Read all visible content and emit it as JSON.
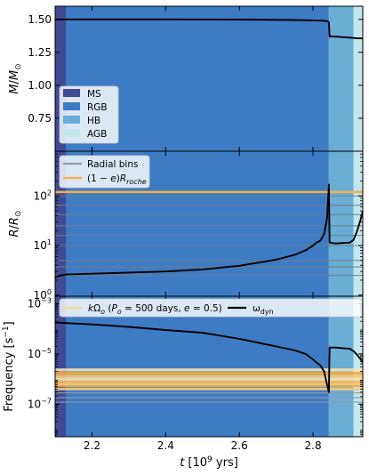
{
  "chart_data": [
    {
      "type": "area",
      "panel": "mass",
      "ylabel_html": "<tspan font-style='italic'>M</tspan>/<tspan font-style='italic'>M</tspan><tspan font-size='9' dy='3'>⊙</tspan>",
      "ylim": [
        0.5,
        1.6
      ],
      "yticks": [
        0.75,
        1.0,
        1.25,
        1.5
      ],
      "ytick_labels": [
        "0.75",
        "1.00",
        "1.25",
        "1.50"
      ],
      "legend_position": "center-left",
      "phases": [
        {
          "label": "MS",
          "x_start": 2.1,
          "x_end": 2.13,
          "color": "#3f4b94"
        },
        {
          "label": "RGB",
          "x_start": 2.13,
          "x_end": 2.843,
          "color": "#3d7cc4"
        },
        {
          "label": "HB",
          "x_start": 2.843,
          "x_end": 2.91,
          "color": "#6aaed6"
        },
        {
          "label": "AGB",
          "x_start": 2.91,
          "x_end": 2.935,
          "color": "#c4e6ee"
        }
      ],
      "series": [
        {
          "color": "#000000",
          "x": [
            2.1,
            2.2,
            2.4,
            2.6,
            2.7,
            2.76,
            2.8,
            2.83,
            2.84,
            2.843,
            2.845,
            2.86,
            2.9,
            2.91,
            2.92,
            2.935
          ],
          "y": [
            1.5,
            1.5,
            1.5,
            1.499,
            1.497,
            1.495,
            1.493,
            1.49,
            1.485,
            1.478,
            1.37,
            1.37,
            1.362,
            1.359,
            1.357,
            1.356
          ]
        }
      ]
    },
    {
      "type": "line",
      "panel": "radius",
      "ylabel_html": "<tspan font-style='italic'>R</tspan>/<tspan font-style='italic'>R</tspan><tspan font-size='9' dy='3'>⊙</tspan>",
      "yscale": "log",
      "ylim": [
        0.95,
        800
      ],
      "yticks": [
        1,
        10,
        100
      ],
      "ytick_labels_html": [
        "10<tspan font-size='8' dy='-5'>0</tspan>",
        "10<tspan font-size='8' dy='-5'>1</tspan>",
        "10<tspan font-size='8' dy='-5'>2</tspan>"
      ],
      "legend_position": "top-left",
      "legend": [
        {
          "label_html": "Radial bins",
          "color": "#8c9aa8"
        },
        {
          "label_html": "(1 − <tspan font-style='italic'>e</tspan>)<tspan font-style='italic'>R</tspan><tspan font-size='8' dy='3' font-style='italic'>roche</tspan>",
          "color": "#f6b04a"
        }
      ],
      "roche_radius": 120,
      "radial_bins": [
        2.5,
        3.7,
        5.0,
        10.0,
        16.0,
        25.0,
        42.0,
        65.0,
        100.0
      ],
      "series": [
        {
          "color": "#000000",
          "x": [
            2.1,
            2.11,
            2.13,
            2.2,
            2.3,
            2.4,
            2.5,
            2.6,
            2.7,
            2.75,
            2.78,
            2.8,
            2.81,
            2.82,
            2.83,
            2.838,
            2.843,
            2.845,
            2.86,
            2.9,
            2.91,
            2.92,
            2.93,
            2.935
          ],
          "y": [
            2.3,
            2.45,
            2.6,
            2.7,
            2.85,
            3.0,
            3.3,
            3.9,
            5.2,
            6.5,
            8.0,
            10.0,
            11.5,
            12.5,
            17.0,
            35.0,
            170.0,
            11.5,
            11.0,
            11.5,
            13.0,
            20.0,
            35.0,
            50.0
          ]
        }
      ]
    },
    {
      "type": "line",
      "panel": "frequency",
      "ylabel_html": "Frequency [s<tspan font-size='9' dy='-5'>−1</tspan><tspan dy='5'>]</tspan>",
      "yscale": "log",
      "ylim": [
        5e-09,
        0.002
      ],
      "yticks": [
        1e-07,
        1e-05,
        0.001
      ],
      "ytick_labels_html": [
        "10<tspan font-size='8' dy='-5'>−7</tspan>",
        "10<tspan font-size='8' dy='-5'>−5</tspan>",
        "10<tspan font-size='8' dy='-5'>−3</tspan>"
      ],
      "xlim": [
        2.1,
        2.935
      ],
      "xticks": [
        2.2,
        2.4,
        2.6,
        2.8
      ],
      "xtick_labels": [
        "2.2",
        "2.4",
        "2.6",
        "2.8"
      ],
      "xlabel_html": "<tspan font-style='italic'>t</tspan> [10<tspan font-size='9' dy='-5'>9</tspan><tspan dy='5'> yrs]</tspan>",
      "legend_position": "top",
      "legend": [
        {
          "label_html": "<tspan font-style='italic'>k</tspan>Ω<tspan font-size='8' dy='3' font-style='italic'>o</tspan><tspan dy='-3'> (</tspan><tspan font-style='italic'>P</tspan><tspan font-size='8' dy='3' font-style='italic'>o</tspan><tspan dy='-3'> = 500 days, </tspan><tspan font-style='italic'>e</tspan> = 0.5)",
          "color": "#f6d79a"
        },
        {
          "label_html": "ω<tspan font-size='8' dy='3'>dyn</tspan>",
          "color": "#000000"
        }
      ],
      "harmonic_lines": [
        {
          "value": 4e-07,
          "color": "#f3ca7e"
        },
        {
          "value": 5.5e-07,
          "color": "#f7a93e"
        },
        {
          "value": 6.5e-07,
          "color": "#f3ca7e"
        },
        {
          "value": 8e-07,
          "color": "#f6b855"
        },
        {
          "value": 1e-06,
          "color": "#f9e4b6"
        },
        {
          "value": 1.3e-06,
          "color": "#f3ca7e"
        },
        {
          "value": 1.7e-06,
          "color": "#f7a93e"
        },
        {
          "value": 2.3e-06,
          "color": "#f9e4b6"
        }
      ],
      "radial_bin_freqs": [
        1.2e-07,
        1.8e-07,
        2.8e-07
      ],
      "series": [
        {
          "color": "#000000",
          "x": [
            2.1,
            2.13,
            2.2,
            2.3,
            2.4,
            2.5,
            2.6,
            2.7,
            2.75,
            2.78,
            2.8,
            2.81,
            2.82,
            2.83,
            2.838,
            2.843,
            2.845,
            2.86,
            2.9,
            2.91,
            2.92,
            2.93,
            2.935
          ],
          "y": [
            0.00018,
            0.00017,
            0.00015,
            0.00012,
            9e-05,
            7e-05,
            4e-05,
            2e-05,
            1.4e-05,
            1e-05,
            6e-06,
            4.5e-06,
            3.5e-06,
            2e-06,
            6e-07,
            3e-07,
            1.8e-05,
            1.8e-05,
            1.6e-05,
            1.3e-05,
            9e-06,
            6e-06,
            4.5e-06
          ]
        }
      ]
    }
  ]
}
